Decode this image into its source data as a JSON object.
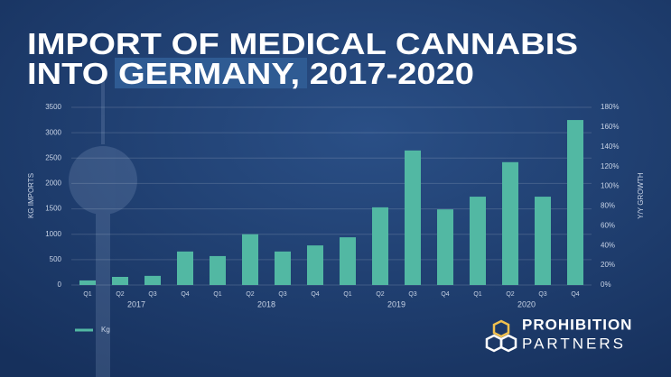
{
  "chart_data": {
    "type": "bar",
    "title_lines": [
      "IMPORT OF MEDICAL CANNABIS",
      "INTO GERMANY, 2017-2020"
    ],
    "ylabel": "KG IMPORTS",
    "y2label": "Y/Y GROWTH",
    "categories": [
      "Q1",
      "Q2",
      "Q3",
      "Q4",
      "Q1",
      "Q2",
      "Q3",
      "Q4",
      "Q1",
      "Q2",
      "Q3",
      "Q4",
      "Q1",
      "Q2",
      "Q3",
      "Q4"
    ],
    "groups": [
      "2017",
      "2018",
      "2019",
      "2020"
    ],
    "series": [
      {
        "name": "Kg",
        "color": "#52b8a3",
        "values": [
          90,
          160,
          180,
          660,
          570,
          1000,
          660,
          780,
          940,
          1530,
          2650,
          1490,
          1740,
          2420,
          1740,
          3250
        ]
      }
    ],
    "ylim": [
      0,
      3500
    ],
    "yticks": [
      0,
      500,
      1000,
      1500,
      2000,
      2500,
      3000,
      3500
    ],
    "y2lim": [
      0,
      180
    ],
    "y2ticks": [
      {
        "value": 0,
        "label": "0%"
      },
      {
        "value": 20,
        "label": "20%"
      },
      {
        "value": 40,
        "label": "40%"
      },
      {
        "value": 60,
        "label": "60%"
      },
      {
        "value": 80,
        "label": "80%"
      },
      {
        "value": 100,
        "label": "100%"
      },
      {
        "value": 120,
        "label": "120%"
      },
      {
        "value": 140,
        "label": "140%"
      },
      {
        "value": 160,
        "label": "160%"
      },
      {
        "value": 180,
        "label": "180%"
      }
    ],
    "grid": true,
    "legend": "bottom-left",
    "brand": [
      "PROHIBITION",
      "PARTNERS"
    ]
  }
}
